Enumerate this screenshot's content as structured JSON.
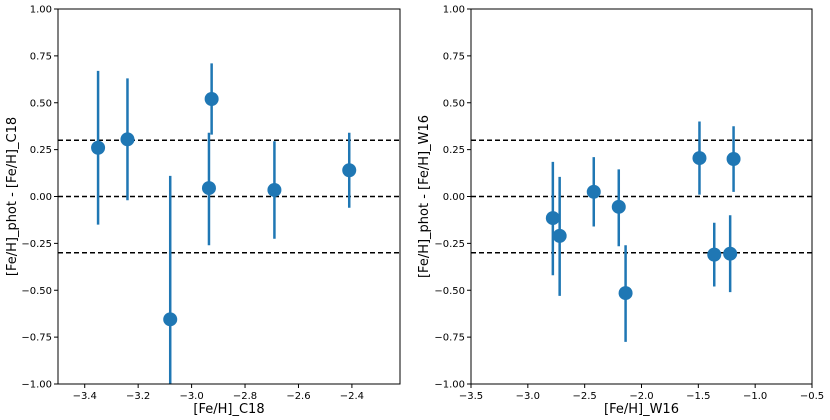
{
  "chart_data": [
    {
      "type": "scatter",
      "title": "",
      "xlabel": "[Fe/H]_C18",
      "ylabel": "[Fe/H]_phot - [Fe/H]_C18",
      "xlim": [
        -3.5,
        -2.22
      ],
      "ylim": [
        -1.0,
        1.0
      ],
      "xticks": [
        -3.4,
        -3.2,
        -3.0,
        -2.8,
        -2.6,
        -2.4
      ],
      "xtick_labels": [
        "−3.4",
        "−3.2",
        "−3.0",
        "−2.8",
        "−2.6",
        "−2.4"
      ],
      "yticks": [
        -1.0,
        -0.75,
        -0.5,
        -0.25,
        0.0,
        0.25,
        0.5,
        0.75,
        1.0
      ],
      "ytick_labels": [
        "−1.00",
        "−0.75",
        "−0.50",
        "−0.25",
        "0.00",
        "0.25",
        "0.50",
        "0.75",
        "1.00"
      ],
      "hlines": [
        0.3,
        0.0,
        -0.3
      ],
      "marker_color": "#1f77b4",
      "x": [
        -3.35,
        -3.24,
        -3.08,
        -2.935,
        -2.925,
        -2.69,
        -2.41
      ],
      "y": [
        0.26,
        0.305,
        -0.655,
        0.045,
        0.52,
        0.035,
        0.14
      ],
      "yerr_low": [
        0.41,
        0.325,
        0.455,
        0.305,
        0.19,
        0.26,
        0.2
      ],
      "yerr_high": [
        0.41,
        0.325,
        0.765,
        0.295,
        0.19,
        0.26,
        0.2
      ]
    },
    {
      "type": "scatter",
      "title": "",
      "xlabel": "[Fe/H]_W16",
      "ylabel": "[Fe/H]_phot - [Fe/H]_W16",
      "xlim": [
        -3.5,
        -0.5
      ],
      "ylim": [
        -1.0,
        1.0
      ],
      "xticks": [
        -3.5,
        -3.0,
        -2.5,
        -2.0,
        -1.5,
        -1.0,
        -0.5
      ],
      "xtick_labels": [
        "−3.5",
        "−3.0",
        "−2.5",
        "−2.0",
        "−1.5",
        "−1.0",
        "−0.5"
      ],
      "yticks": [
        -1.0,
        -0.75,
        -0.5,
        -0.25,
        0.0,
        0.25,
        0.5,
        0.75,
        1.0
      ],
      "ytick_labels": [
        "−1.00",
        "−0.75",
        "−0.50",
        "−0.25",
        "0.00",
        "0.25",
        "0.50",
        "0.75",
        "1.00"
      ],
      "hlines": [
        0.3,
        0.0,
        -0.3
      ],
      "marker_color": "#1f77b4",
      "x": [
        -2.78,
        -2.72,
        -2.42,
        -2.2,
        -2.14,
        -1.49,
        -1.36,
        -1.22,
        -1.19
      ],
      "y": [
        -0.115,
        -0.21,
        0.025,
        -0.055,
        -0.515,
        0.205,
        -0.31,
        -0.305,
        0.2
      ],
      "yerr_low": [
        0.305,
        0.32,
        0.185,
        0.21,
        0.26,
        0.195,
        0.17,
        0.205,
        0.175
      ],
      "yerr_high": [
        0.3,
        0.315,
        0.185,
        0.2,
        0.255,
        0.195,
        0.17,
        0.205,
        0.175
      ]
    }
  ]
}
